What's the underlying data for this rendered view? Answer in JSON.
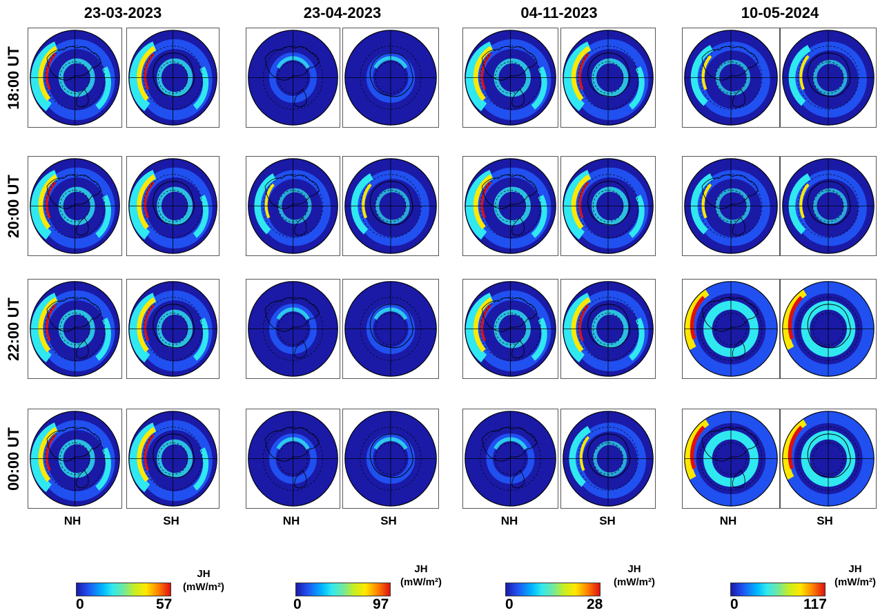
{
  "dates": [
    "23-03-2023",
    "23-04-2023",
    "04-11-2023",
    "10-05-2024"
  ],
  "times": [
    "18:00 UT",
    "20:00 UT",
    "22:00 UT",
    "00:00 UT"
  ],
  "hemispheres": [
    "NH",
    "SH"
  ],
  "colorbars": [
    {
      "label": "JH",
      "unit": "(mW/m²)",
      "min": "0",
      "max": "57"
    },
    {
      "label": "JH",
      "unit": "(mW/m²)",
      "min": "0",
      "max": "97"
    },
    {
      "label": "JH",
      "unit": "(mW/m²)",
      "min": "0",
      "max": "28"
    },
    {
      "label": "JH",
      "unit": "(mW/m²)",
      "min": "0",
      "max": "117"
    }
  ],
  "colors": {
    "background_field": "#1a1aa6",
    "low": "#2050f0",
    "mid": "#30e8f0",
    "high": "#ffe800",
    "peak": "#e01010"
  }
}
